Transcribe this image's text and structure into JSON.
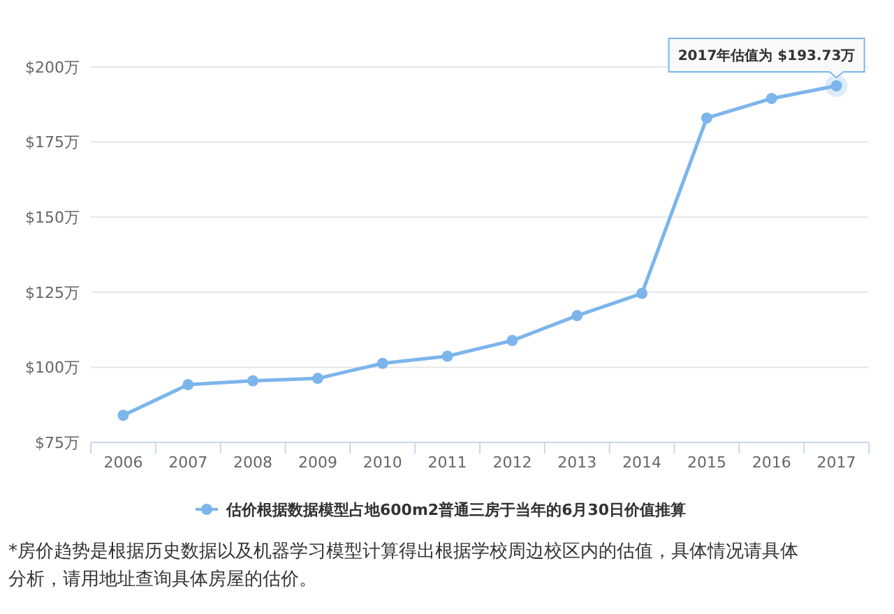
{
  "chart_data": {
    "type": "line",
    "categories": [
      "2006",
      "2007",
      "2008",
      "2009",
      "2010",
      "2011",
      "2012",
      "2013",
      "2014",
      "2015",
      "2016",
      "2017"
    ],
    "series": [
      {
        "name": "估价根据数据模型占地600m2普通三房于当年的6月30日价值推算",
        "color": "#7cb5ec",
        "values": [
          84,
          94.2,
          95.5,
          96.3,
          101.3,
          103.7,
          108.9,
          117.2,
          124.6,
          183,
          189.5,
          193.73
        ]
      }
    ],
    "ylim": [
      75,
      200
    ],
    "yticks": [
      {
        "value": 75,
        "label": "$75万"
      },
      {
        "value": 100,
        "label": "$100万"
      },
      {
        "value": 125,
        "label": "$125万"
      },
      {
        "value": 150,
        "label": "$150万"
      },
      {
        "value": 175,
        "label": "$175万"
      },
      {
        "value": 200,
        "label": "$200万"
      }
    ],
    "grid": "y",
    "legend": "bottom",
    "marker": "circle",
    "line_style": "solid",
    "annotations": [
      {
        "text": "2017年估值为 $193.73万",
        "x": "2017",
        "y": 193.73
      },
      "*房价趋势是根据历史数据以及机器学习模型计算得出根据学校周边校区内的估值，具体情况请具体分析，请用地址查询具体房屋的估价。"
    ]
  }
}
